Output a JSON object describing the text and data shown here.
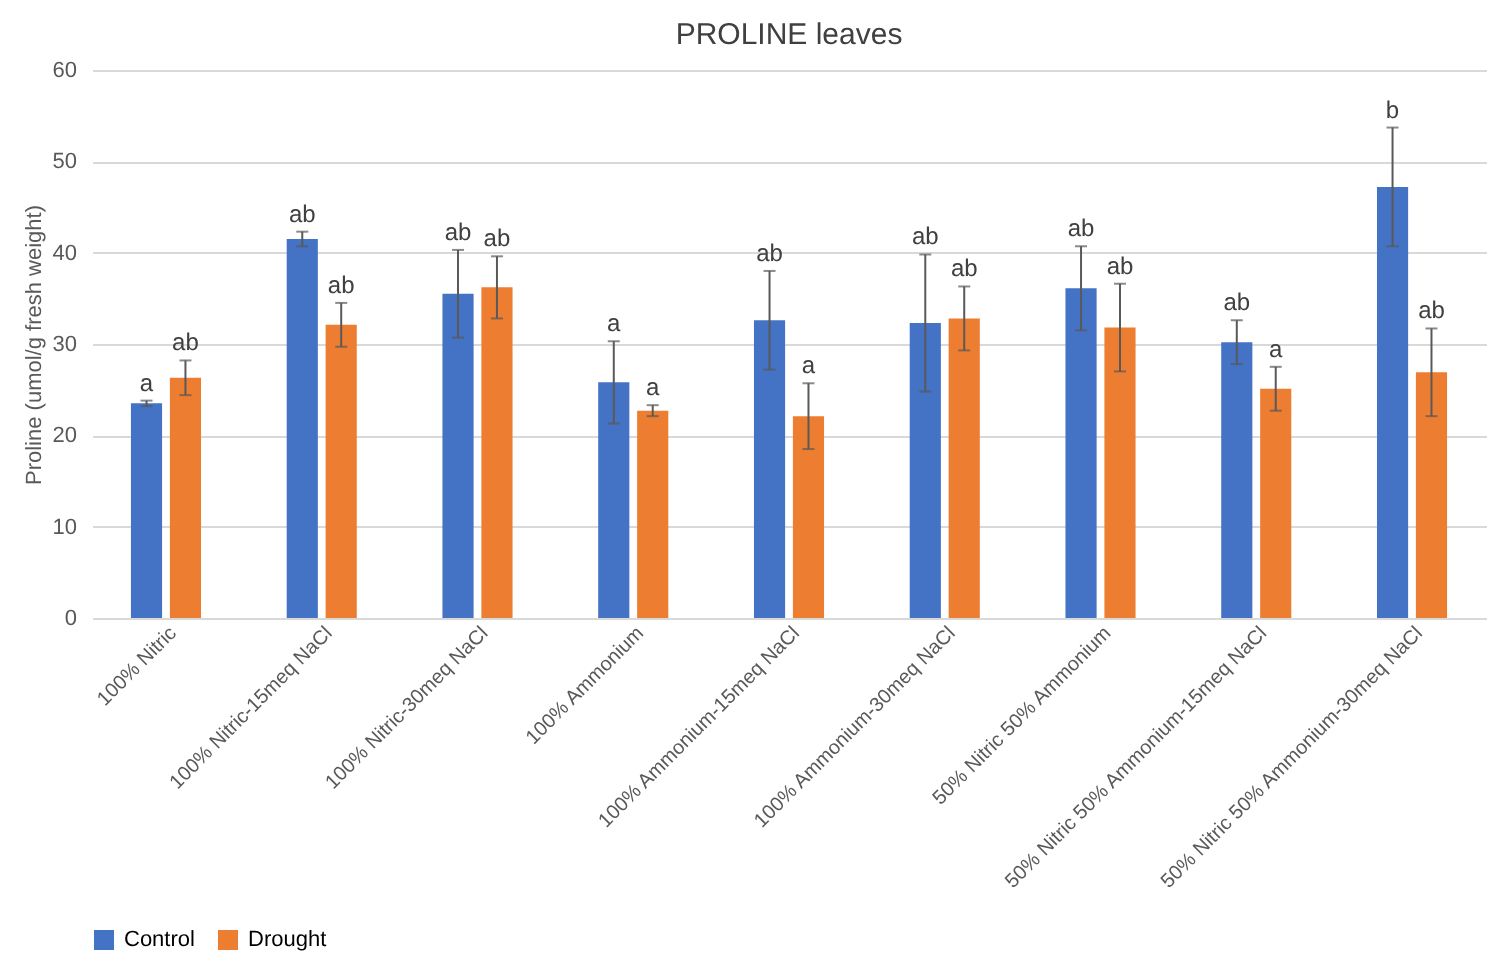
{
  "chart_data": {
    "type": "bar",
    "title": "PROLINE leaves",
    "ylabel": "Proline (umol/g fresh weight)",
    "categories": [
      "100% Nitric",
      "100% Nitric-15meq NaCl",
      "100% Nitric-30meq NaCl",
      "100% Ammonium",
      "100% Ammonium-15meq NaCl",
      "100% Ammonium-30meq NaCl",
      "50% Nitric 50% Ammonium",
      "50% Nitric 50% Ammonium-15meq NaCl",
      "50% Nitric 50% Ammonium-30meq NaCl"
    ],
    "series": [
      {
        "name": "Control",
        "color": "#4472c4",
        "values": [
          23.5,
          41.5,
          35.5,
          25.8,
          32.6,
          32.3,
          36.1,
          30.2,
          47.2
        ],
        "errors": [
          0.3,
          0.8,
          4.8,
          4.5,
          5.4,
          7.5,
          4.6,
          2.4,
          6.5
        ]
      },
      {
        "name": "Drought",
        "color": "#ed7d31",
        "values": [
          26.3,
          32.1,
          36.2,
          22.7,
          22.1,
          32.8,
          31.8,
          25.1,
          26.9
        ],
        "errors": [
          1.9,
          2.4,
          3.4,
          0.6,
          3.6,
          3.5,
          4.8,
          2.4,
          4.8
        ]
      }
    ],
    "ylim": [
      0,
      60
    ],
    "yticks": [
      0,
      10,
      20,
      30,
      40,
      50,
      60
    ],
    "grid": "y",
    "legend": "bottom",
    "annotations": [
      "a",
      "ab",
      "ab",
      "ab",
      "ab",
      "ab",
      "a",
      "a",
      "ab",
      "a",
      "ab",
      "ab",
      "ab",
      "ab",
      "ab",
      "a",
      "b",
      "ab"
    ]
  }
}
